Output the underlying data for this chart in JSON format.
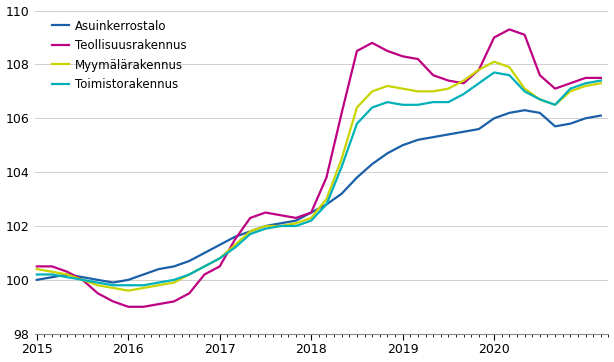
{
  "series": {
    "Asuinkerrostalo": {
      "color": "#1a5fa8",
      "values": [
        100.0,
        100.1,
        100.2,
        100.1,
        100.0,
        99.9,
        100.0,
        100.2,
        100.4,
        100.5,
        100.7,
        101.0,
        101.3,
        101.6,
        101.8,
        102.0,
        102.1,
        102.2,
        102.5,
        102.8,
        103.2,
        103.8,
        104.3,
        104.7,
        105.0,
        105.2,
        105.3,
        105.4,
        105.5,
        105.6,
        106.0,
        106.2,
        106.3,
        106.2,
        105.7,
        105.8,
        106.0,
        106.1
      ]
    },
    "Teollisuusrakennus": {
      "color": "#be0082",
      "values": [
        100.5,
        100.5,
        100.3,
        100.0,
        99.5,
        99.2,
        99.0,
        99.0,
        99.1,
        99.2,
        99.5,
        100.2,
        100.5,
        101.5,
        102.3,
        102.5,
        102.4,
        102.3,
        102.5,
        103.8,
        106.2,
        108.5,
        108.8,
        108.5,
        108.3,
        108.2,
        107.6,
        107.4,
        107.3,
        107.8,
        109.0,
        109.3,
        109.1,
        107.6,
        107.1,
        107.3,
        107.5,
        107.5
      ]
    },
    "Myymälärakennus": {
      "color": "#c8d400",
      "values": [
        100.4,
        100.3,
        100.2,
        100.0,
        99.8,
        99.7,
        99.6,
        99.7,
        99.8,
        99.9,
        100.2,
        100.5,
        100.8,
        101.3,
        101.8,
        102.0,
        102.0,
        102.1,
        102.3,
        103.0,
        104.5,
        106.4,
        107.0,
        107.2,
        107.1,
        107.0,
        107.0,
        107.1,
        107.4,
        107.8,
        108.1,
        107.9,
        107.1,
        106.7,
        106.5,
        107.0,
        107.2,
        107.3
      ]
    },
    "Toimistorakennus": {
      "color": "#00b0b9",
      "values": [
        100.2,
        100.2,
        100.1,
        100.0,
        99.9,
        99.8,
        99.8,
        99.8,
        99.9,
        100.0,
        100.2,
        100.5,
        100.8,
        101.2,
        101.7,
        101.9,
        102.0,
        102.0,
        102.2,
        102.8,
        104.2,
        105.8,
        106.4,
        106.6,
        106.5,
        106.5,
        106.6,
        106.6,
        106.9,
        107.3,
        107.7,
        107.6,
        107.0,
        106.7,
        106.5,
        107.1,
        107.3,
        107.4
      ]
    }
  },
  "ylim": [
    98,
    110
  ],
  "yticks": [
    98,
    100,
    102,
    104,
    106,
    108,
    110
  ],
  "n_points": 38,
  "start_year": 2015,
  "points_per_year": 6,
  "xtick_years": [
    2015,
    2016,
    2017,
    2018,
    2019,
    2020
  ],
  "minor_tick_interval": 0.5,
  "xlim_start": 2015.0,
  "xlim_end": 2021.17,
  "linewidth": 1.6,
  "background_color": "#ffffff",
  "grid_color": "#d0d0d0",
  "legend_fontsize": 8.5,
  "tick_fontsize": 9
}
